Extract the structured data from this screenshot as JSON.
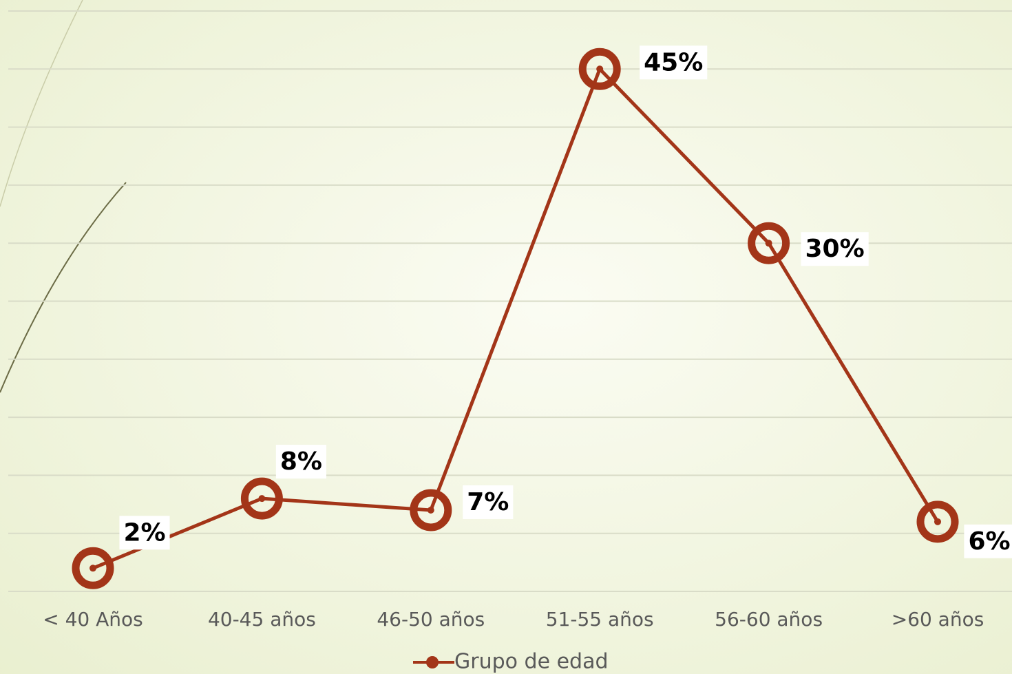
{
  "chart_data": {
    "type": "line",
    "categories": [
      "< 40 Años",
      "40-45 años",
      "46-50 años",
      "51-55 años",
      "56-60 años",
      ">60 años"
    ],
    "series": [
      {
        "name": "Grupo de edad",
        "color": "#a33518",
        "values": [
          2,
          8,
          7,
          45,
          30,
          6
        ],
        "value_labels": [
          "2%",
          "8%",
          "7%",
          "45%",
          "30%",
          "6%"
        ]
      }
    ],
    "ylim": [
      0,
      50
    ],
    "yticks": [
      0,
      5,
      10,
      15,
      20,
      25,
      30,
      35,
      40,
      45,
      50
    ],
    "grid": true,
    "legend": "bottom"
  }
}
